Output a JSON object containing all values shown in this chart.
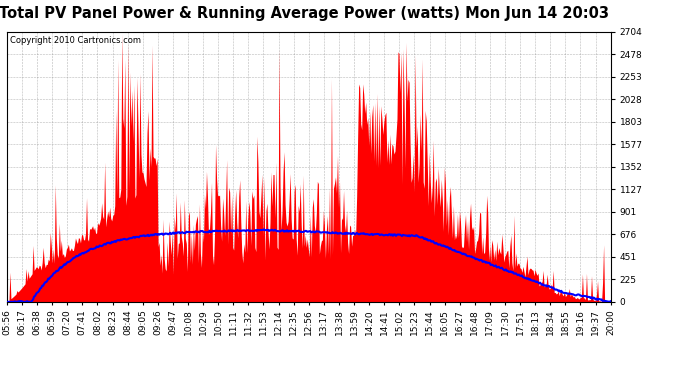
{
  "title": "Total PV Panel Power & Running Average Power (watts) Mon Jun 14 20:03",
  "copyright": "Copyright 2010 Cartronics.com",
  "background_color": "#ffffff",
  "plot_bg_color": "#ffffff",
  "grid_color": "#888888",
  "fill_color": "#ff0000",
  "line_color": "#0000ff",
  "y_ticks": [
    0.0,
    225.3,
    450.6,
    676.0,
    901.3,
    1126.6,
    1351.9,
    1577.3,
    1802.6,
    2027.9,
    2253.2,
    2478.5,
    2703.9
  ],
  "ymin": 0.0,
  "ymax": 2703.9,
  "x_tick_labels": [
    "05:56",
    "06:17",
    "06:38",
    "06:59",
    "07:20",
    "07:41",
    "08:02",
    "08:23",
    "08:44",
    "09:05",
    "09:26",
    "09:47",
    "10:08",
    "10:29",
    "10:50",
    "11:11",
    "11:32",
    "11:53",
    "12:14",
    "12:35",
    "12:56",
    "13:17",
    "13:38",
    "13:59",
    "14:20",
    "14:41",
    "15:02",
    "15:23",
    "15:44",
    "16:05",
    "16:27",
    "16:48",
    "17:09",
    "17:30",
    "17:51",
    "18:13",
    "18:34",
    "18:55",
    "19:16",
    "19:37",
    "20:00"
  ],
  "figwidth": 6.9,
  "figheight": 3.75,
  "dpi": 100,
  "title_fontsize": 10.5,
  "tick_fontsize": 6.5,
  "copyright_fontsize": 6
}
